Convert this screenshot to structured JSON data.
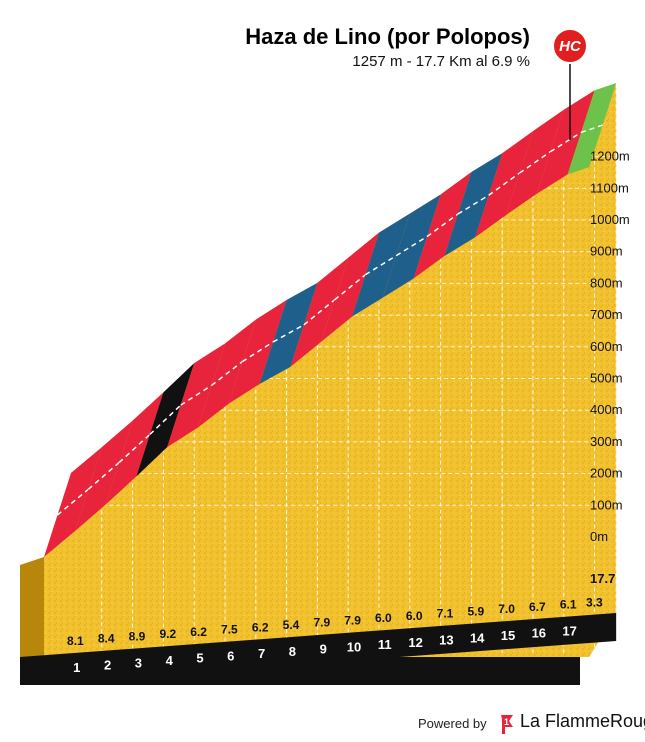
{
  "header": {
    "title": "Haza de Lino (por Polopos)",
    "subtitle": "1257 m - 17.7 Km al 6.9 %",
    "category_badge": "HC"
  },
  "footer": {
    "powered_by": "Powered by",
    "brand_name": "La FlammeRouge",
    "brand_icon": "flag-1-icon"
  },
  "colors": {
    "fill": "#f2c12e",
    "side": "#b8860b",
    "band": "#111111",
    "grade_red": "#e8233c",
    "grade_blue": "#1f5f8b",
    "grade_black": "#111111",
    "grade_green": "#6cc24a",
    "badge": "#e02020"
  },
  "chart_data": {
    "type": "area",
    "title": "Haza de Lino (por Polopos)",
    "subtitle": "1257 m - 17.7 Km al 6.9 %",
    "xlabel": "",
    "ylabel": "",
    "x_unit": "km",
    "y_unit": "m",
    "x_range": [
      0,
      17.7
    ],
    "ylim": [
      0,
      1200
    ],
    "y_ticks": [
      {
        "value": 0,
        "label": "0m"
      },
      {
        "value": 100,
        "label": "100m"
      },
      {
        "value": 200,
        "label": "200m"
      },
      {
        "value": 300,
        "label": "300m"
      },
      {
        "value": 400,
        "label": "400m"
      },
      {
        "value": 500,
        "label": "500m"
      },
      {
        "value": 600,
        "label": "600m"
      },
      {
        "value": 700,
        "label": "700m"
      },
      {
        "value": 800,
        "label": "800m"
      },
      {
        "value": 900,
        "label": "900m"
      },
      {
        "value": 1000,
        "label": "1000m"
      },
      {
        "value": 1100,
        "label": "1100m"
      },
      {
        "value": 1200,
        "label": "1200m"
      }
    ],
    "km_labels": [
      "1",
      "2",
      "3",
      "4",
      "5",
      "6",
      "7",
      "8",
      "9",
      "10",
      "11",
      "12",
      "13",
      "14",
      "15",
      "16",
      "17"
    ],
    "end_label": "17.7",
    "segments": [
      {
        "km": 1,
        "gradient": 8.1,
        "label": "8.1",
        "color": "red"
      },
      {
        "km": 2,
        "gradient": 8.4,
        "label": "8.4",
        "color": "red"
      },
      {
        "km": 3,
        "gradient": 8.9,
        "label": "8.9",
        "color": "red"
      },
      {
        "km": 4,
        "gradient": 9.2,
        "label": "9.2",
        "color": "black"
      },
      {
        "km": 5,
        "gradient": 6.2,
        "label": "6.2",
        "color": "red"
      },
      {
        "km": 6,
        "gradient": 7.5,
        "label": "7.5",
        "color": "red"
      },
      {
        "km": 7,
        "gradient": 6.2,
        "label": "6.2",
        "color": "red"
      },
      {
        "km": 8,
        "gradient": 5.4,
        "label": "5.4",
        "color": "blue"
      },
      {
        "km": 9,
        "gradient": 7.9,
        "label": "7.9",
        "color": "red"
      },
      {
        "km": 10,
        "gradient": 7.9,
        "label": "7.9",
        "color": "red"
      },
      {
        "km": 11,
        "gradient": 6.0,
        "label": "6.0",
        "color": "blue"
      },
      {
        "km": 12,
        "gradient": 6.0,
        "label": "6.0",
        "color": "blue"
      },
      {
        "km": 13,
        "gradient": 7.1,
        "label": "7.1",
        "color": "red"
      },
      {
        "km": 14,
        "gradient": 5.9,
        "label": "5.9",
        "color": "blue"
      },
      {
        "km": 15,
        "gradient": 7.0,
        "label": "7.0",
        "color": "red"
      },
      {
        "km": 16,
        "gradient": 6.7,
        "label": "6.7",
        "color": "red"
      },
      {
        "km": 17,
        "gradient": 6.1,
        "label": "6.1",
        "color": "red"
      },
      {
        "km": 17.7,
        "gradient": 3.3,
        "label": "3.3",
        "color": "green"
      }
    ]
  }
}
